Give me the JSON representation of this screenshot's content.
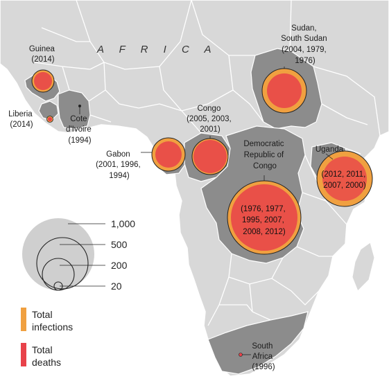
{
  "region_label": "A F R I C A",
  "colors": {
    "ocean": "#ffffff",
    "land": "#d8d8d8",
    "affected_country": "#8c8c8c",
    "border": "#ffffff",
    "infections": "#f0a040",
    "deaths": "#e8424a",
    "circle_stroke": "#222222"
  },
  "outbreaks": [
    {
      "id": "guinea",
      "label_lines": [
        "Guinea",
        "(2014)"
      ]
    },
    {
      "id": "liberia",
      "label_lines": [
        "Liberia",
        "(2014)"
      ]
    },
    {
      "id": "cote-divoire",
      "label_lines": [
        "Cote",
        "d'Ivoire",
        "(1994)"
      ]
    },
    {
      "id": "gabon",
      "label_lines": [
        "Gabon",
        "(2001, 1996,",
        "1994)"
      ]
    },
    {
      "id": "congo",
      "label_lines": [
        "Congo",
        "(2005, 2003,",
        "2001)"
      ]
    },
    {
      "id": "sudan",
      "label_lines": [
        "Sudan,",
        "South Sudan",
        "(2004, 1979,",
        "1976)"
      ]
    },
    {
      "id": "drc",
      "label_lines": [
        "Democratic",
        "Republic of",
        "Congo"
      ],
      "inner_lines": [
        "(1976, 1977,",
        "1995, 2007,",
        "2008, 2012)"
      ]
    },
    {
      "id": "uganda",
      "label_lines": [
        "Uganda"
      ],
      "inner_lines": [
        "(2012, 2011,",
        "2007, 2000)"
      ]
    },
    {
      "id": "south-africa",
      "label_lines": [
        "South",
        "Africa",
        "(1996)"
      ]
    }
  ],
  "size_legend": {
    "values": [
      "1,000",
      "500",
      "200",
      "20"
    ]
  },
  "color_legend": [
    {
      "id": "infections",
      "lines": [
        "Total",
        "infections"
      ],
      "color": "#f0a040"
    },
    {
      "id": "deaths",
      "lines": [
        "Total",
        "deaths"
      ],
      "color": "#e8424a"
    }
  ]
}
